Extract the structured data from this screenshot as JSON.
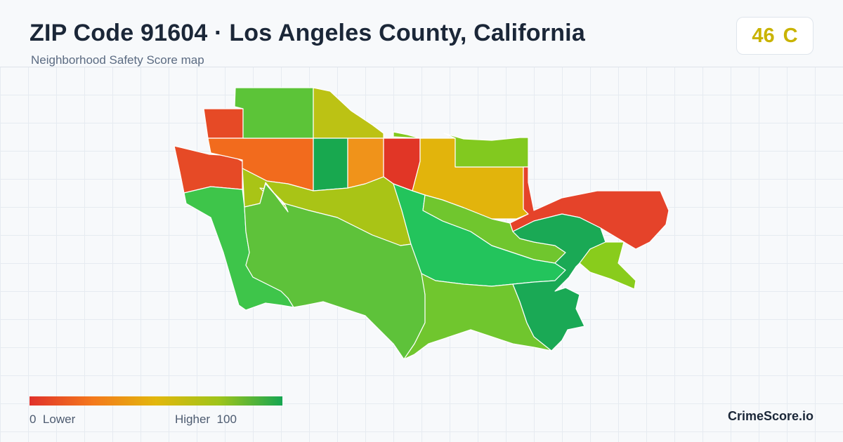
{
  "header": {
    "title": "ZIP Code 91604 · Los Angeles County, California",
    "subtitle": "Neighborhood Safety Score map"
  },
  "score_badge": {
    "score": "46",
    "grade": "C",
    "color": "#c9b300"
  },
  "legend": {
    "min_value": "0",
    "min_label": "Lower",
    "max_label": "Higher",
    "max_value": "100",
    "low_color": "#e0312a",
    "high_color": "#16a651"
  },
  "brand": "CrimeScore.io",
  "map": {
    "regions": [
      {
        "name": "region-west-red",
        "color": "#e64a26"
      },
      {
        "name": "region-north-strip",
        "color": "#f26b1d"
      },
      {
        "name": "region-north-hill",
        "color": "#5cc438"
      },
      {
        "name": "region-north-olive",
        "color": "#bcc214"
      },
      {
        "name": "region-center-green",
        "color": "#18a84f"
      },
      {
        "name": "region-center-orange",
        "color": "#f0931a"
      },
      {
        "name": "region-center-red",
        "color": "#e13626"
      },
      {
        "name": "region-center-yellow",
        "color": "#e2b40c"
      },
      {
        "name": "region-northeast-lime",
        "color": "#82c91f"
      },
      {
        "name": "region-east-red",
        "color": "#e5432a"
      },
      {
        "name": "region-southwest-green",
        "color": "#3ec54a"
      },
      {
        "name": "region-south-green",
        "color": "#5ec23a"
      },
      {
        "name": "region-mid-olive",
        "color": "#a9c416"
      },
      {
        "name": "region-central-emerald",
        "color": "#23c45c"
      },
      {
        "name": "region-south-lime",
        "color": "#70c62e"
      },
      {
        "name": "region-southeast-green",
        "color": "#1aa955"
      },
      {
        "name": "region-east-lime",
        "color": "#89cc1c"
      }
    ]
  }
}
